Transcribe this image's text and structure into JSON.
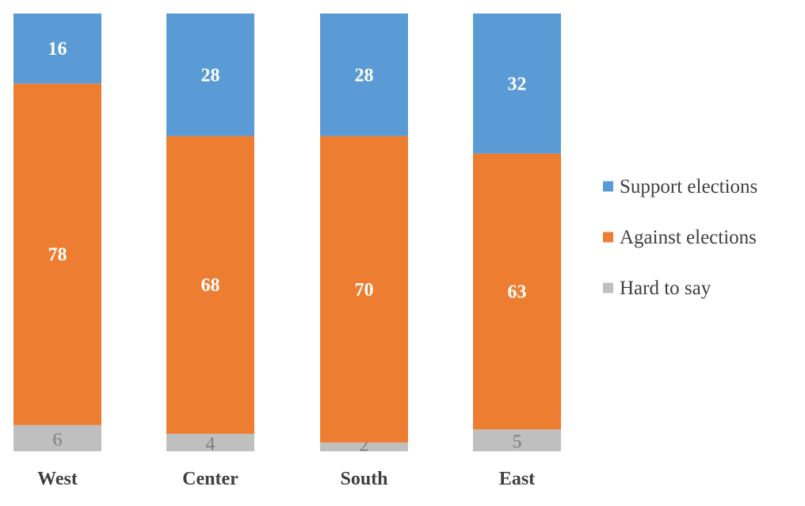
{
  "chart_data": {
    "type": "bar",
    "stacked": true,
    "normalized": true,
    "categories": [
      "West",
      "Center",
      "South",
      "East"
    ],
    "series": [
      {
        "name": "Hard to say",
        "values": [
          6,
          4,
          2,
          5
        ],
        "color": "#bfbfbf"
      },
      {
        "name": "Against elections",
        "values": [
          78,
          68,
          70,
          63
        ],
        "color": "#ed7d31"
      },
      {
        "name": "Support elections",
        "values": [
          16,
          28,
          28,
          32
        ],
        "color": "#5b9bd5"
      }
    ],
    "legend": {
      "placement": "right",
      "order": [
        "Support elections",
        "Against elections",
        "Hard to say"
      ]
    },
    "title": "",
    "xlabel": "",
    "ylabel": "",
    "ylim": [
      0,
      100
    ],
    "grid": false
  }
}
